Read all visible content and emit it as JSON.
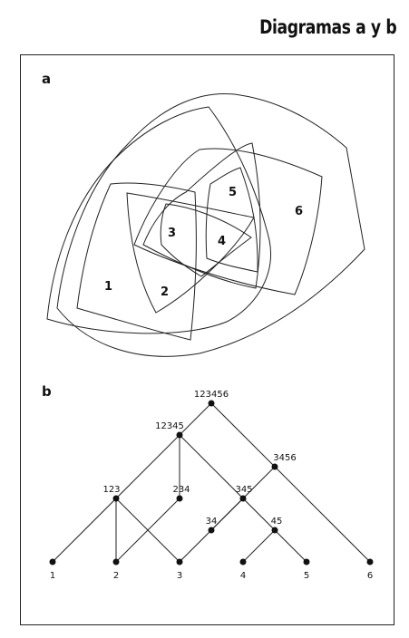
{
  "title": "Diagramas a y b",
  "panel_a": {
    "label": "a",
    "regions": [
      "1",
      "2",
      "3",
      "4",
      "5",
      "6"
    ]
  },
  "panel_b": {
    "label": "b",
    "nodes": {
      "n123456": "123456",
      "n12345": "12345",
      "n3456": "3456",
      "n123": "123",
      "n234": "234",
      "n345": "345",
      "n34": "34",
      "n45": "45",
      "n1": "1",
      "n2": "2",
      "n3": "3",
      "n4": "4",
      "n5": "5",
      "n6": "6"
    }
  }
}
